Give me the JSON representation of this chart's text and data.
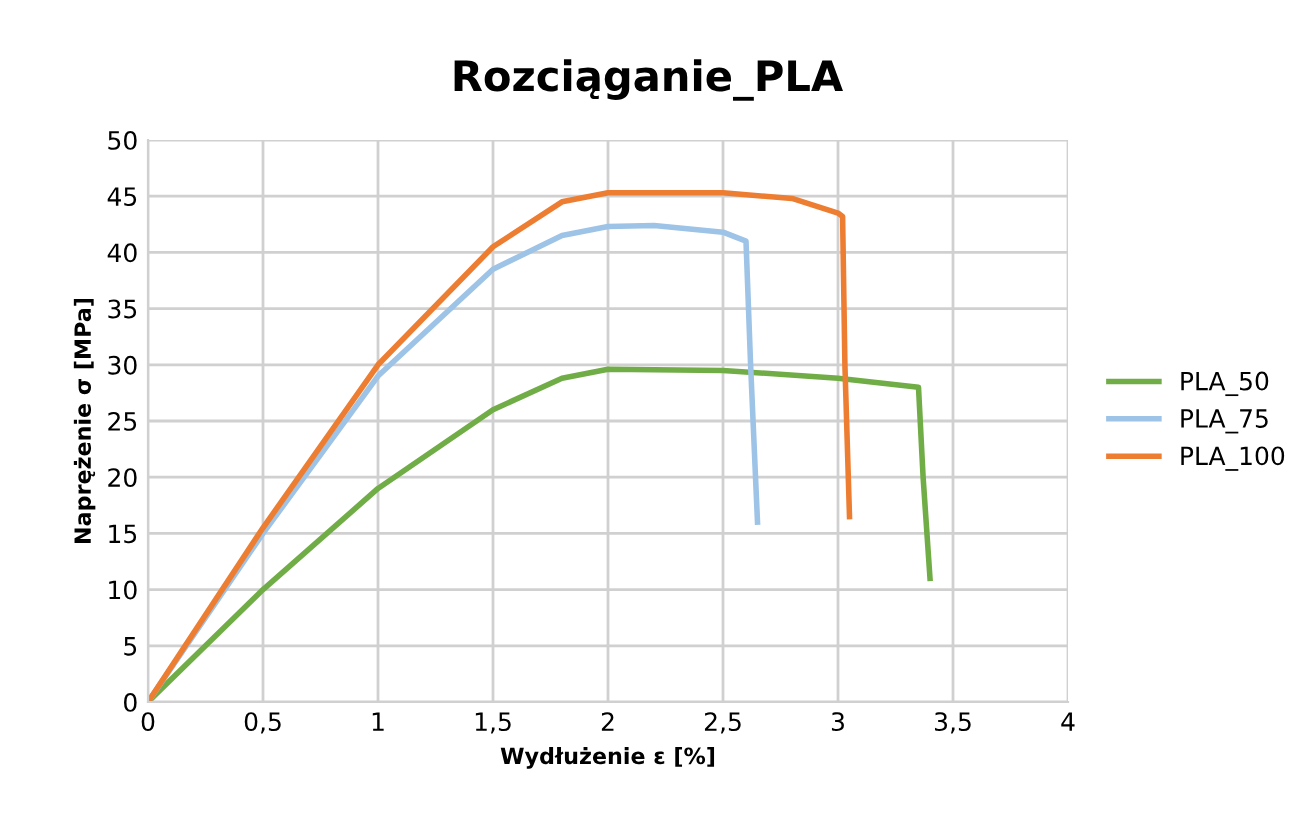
{
  "chart_data": {
    "type": "line",
    "title": "Rozciąganie_PLA",
    "xlabel": "Wydłużenie ε [%]",
    "ylabel": "Naprężenie σ [MPa]",
    "xlim": [
      0,
      4
    ],
    "xticks": [
      {
        "value": 0,
        "label": "0"
      },
      {
        "value": 0.5,
        "label": "0,5"
      },
      {
        "value": 1,
        "label": "1"
      },
      {
        "value": 1.5,
        "label": "1,5"
      },
      {
        "value": 2,
        "label": "2"
      },
      {
        "value": 2.5,
        "label": "2,5"
      },
      {
        "value": 3,
        "label": "3"
      },
      {
        "value": 3.5,
        "label": "3,5"
      },
      {
        "value": 4,
        "label": "4"
      }
    ],
    "ylim": [
      0,
      50
    ],
    "yticks": [
      0,
      5,
      10,
      15,
      20,
      25,
      30,
      35,
      40,
      45,
      50
    ],
    "grid": true,
    "legend": "right",
    "marker": "none",
    "line_style": "solid",
    "series": [
      {
        "name": "PLA_50",
        "color": "#70ad47",
        "x": [
          0,
          0.5,
          1,
          1.5,
          1.8,
          2,
          2.5,
          3.0,
          3.35,
          3.37,
          3.4
        ],
        "values": [
          0,
          10,
          19,
          26,
          28.8,
          29.6,
          29.5,
          28.8,
          28.0,
          20,
          11
        ]
      },
      {
        "name": "PLA_75",
        "color": "#9dc3e6",
        "x": [
          0,
          0.5,
          1,
          1.5,
          1.8,
          2,
          2.2,
          2.5,
          2.6,
          2.62,
          2.65
        ],
        "values": [
          0,
          15,
          29,
          38.5,
          41.5,
          42.3,
          42.4,
          41.8,
          41,
          30,
          16
        ]
      },
      {
        "name": "PLA_100",
        "color": "#ed7d31",
        "x": [
          0,
          0.5,
          1,
          1.5,
          1.8,
          2,
          2.5,
          2.8,
          3.0,
          3.02,
          3.03,
          3.05
        ],
        "values": [
          0,
          15.5,
          30,
          40.5,
          44.5,
          45.3,
          45.3,
          44.8,
          43.5,
          43.2,
          30,
          16.5
        ]
      }
    ]
  }
}
